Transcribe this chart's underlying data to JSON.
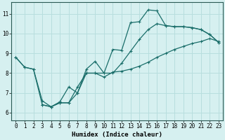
{
  "xlabel": "Humidex (Indice chaleur)",
  "background_color": "#d6f0f0",
  "grid_color": "#b8dede",
  "line_color": "#1a6e6a",
  "xlim": [
    -0.5,
    23.5
  ],
  "ylim": [
    5.6,
    11.6
  ],
  "xticks": [
    0,
    1,
    2,
    3,
    4,
    5,
    6,
    7,
    8,
    9,
    10,
    11,
    12,
    13,
    14,
    15,
    16,
    17,
    18,
    19,
    20,
    21,
    22,
    23
  ],
  "yticks": [
    6,
    7,
    8,
    9,
    10,
    11
  ],
  "line1_x": [
    0,
    1,
    2,
    3,
    4,
    5,
    6,
    7,
    8,
    9,
    10,
    11,
    12,
    13,
    14,
    15,
    16,
    17,
    18,
    19,
    20,
    21,
    22,
    23
  ],
  "line1_y": [
    8.8,
    8.3,
    8.2,
    6.6,
    6.3,
    6.55,
    7.3,
    7.0,
    8.2,
    8.6,
    8.0,
    9.2,
    9.15,
    10.55,
    10.6,
    11.2,
    11.15,
    10.4,
    10.35,
    10.35,
    10.3,
    10.2,
    9.95,
    9.55
  ],
  "line2_x": [
    0,
    1,
    2,
    3,
    4,
    5,
    6,
    7,
    8,
    9,
    10,
    11,
    12,
    13,
    14,
    15,
    16,
    17,
    18,
    19,
    20,
    21,
    22,
    23
  ],
  "line2_y": [
    8.8,
    8.3,
    8.2,
    6.4,
    6.3,
    6.5,
    6.5,
    7.0,
    8.0,
    8.0,
    7.8,
    8.05,
    8.1,
    8.2,
    8.35,
    8.55,
    8.8,
    9.0,
    9.2,
    9.35,
    9.5,
    9.6,
    9.75,
    9.6
  ],
  "line3_x": [
    3,
    4,
    5,
    6,
    7,
    8,
    9,
    10,
    11,
    12,
    13,
    14,
    15,
    16,
    17,
    18,
    19,
    20,
    21,
    22,
    23
  ],
  "line3_y": [
    6.4,
    6.3,
    6.5,
    6.5,
    7.3,
    8.0,
    8.0,
    8.0,
    8.0,
    8.5,
    9.1,
    9.7,
    10.2,
    10.5,
    10.4,
    10.35,
    10.35,
    10.3,
    10.2,
    9.95,
    9.55
  ]
}
